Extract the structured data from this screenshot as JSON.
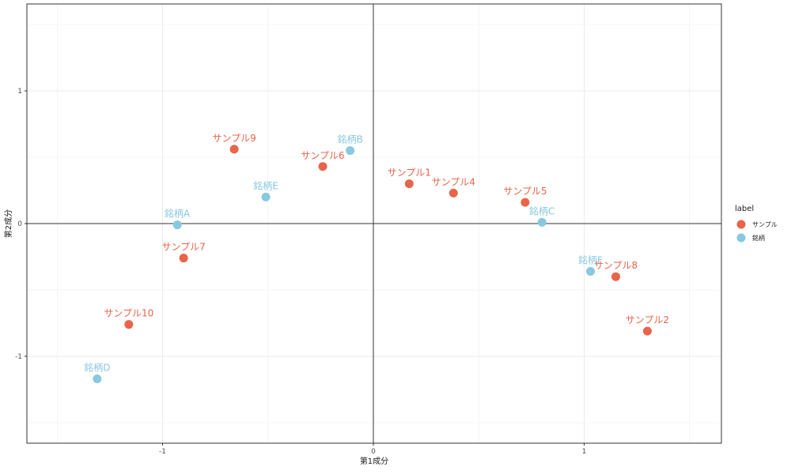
{
  "chart_data": {
    "type": "scatter",
    "title": "",
    "xlabel": "第1成分",
    "ylabel": "第2成分",
    "xlim": [
      -1.65,
      1.65
    ],
    "ylim": [
      -1.65,
      1.65
    ],
    "x_ticks": [
      -1,
      0,
      1
    ],
    "x_tick_labels": [
      "-1",
      "0",
      "1"
    ],
    "y_ticks": [
      -1,
      0,
      1
    ],
    "y_tick_labels": [
      "-1",
      "0",
      "1"
    ],
    "grid": true,
    "reference_lines": {
      "x": 0,
      "y": 0
    },
    "legend": {
      "title": "label",
      "position": "right",
      "entries": [
        {
          "name": "サンプル",
          "color": "#E8644A"
        },
        {
          "name": "銘柄",
          "color": "#88C8E0"
        }
      ]
    },
    "series": [
      {
        "name": "サンプル",
        "color": "#E8644A",
        "points": [
          {
            "label": "サンプル1",
            "x": 0.17,
            "y": 0.3
          },
          {
            "label": "サンプル2",
            "x": 1.3,
            "y": -0.81
          },
          {
            "label": "サンプル4",
            "x": 0.38,
            "y": 0.23
          },
          {
            "label": "サンプル5",
            "x": 0.72,
            "y": 0.16
          },
          {
            "label": "サンプル6",
            "x": -0.24,
            "y": 0.43
          },
          {
            "label": "サンプル7",
            "x": -0.9,
            "y": -0.26
          },
          {
            "label": "サンプル8",
            "x": 1.15,
            "y": -0.4
          },
          {
            "label": "サンプル9",
            "x": -0.66,
            "y": 0.56
          },
          {
            "label": "サンプル10",
            "x": -1.16,
            "y": -0.76
          }
        ]
      },
      {
        "name": "銘柄",
        "color": "#88C8E0",
        "points": [
          {
            "label": "銘柄A",
            "x": -0.93,
            "y": -0.01
          },
          {
            "label": "銘柄B",
            "x": -0.11,
            "y": 0.55
          },
          {
            "label": "銘柄C",
            "x": 0.8,
            "y": 0.01
          },
          {
            "label": "銘柄D",
            "x": -1.31,
            "y": -1.17
          },
          {
            "label": "銘柄E",
            "x": -0.51,
            "y": 0.2
          },
          {
            "label": "銘柄F",
            "x": 1.03,
            "y": -0.36
          }
        ]
      }
    ]
  }
}
